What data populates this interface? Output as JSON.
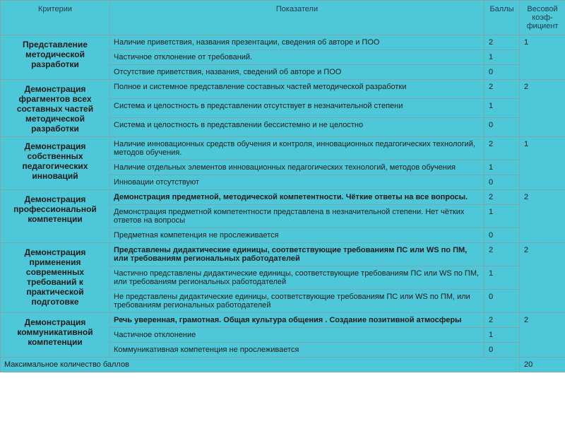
{
  "headers": {
    "criteria": "Критерии",
    "indicators": "Показатели",
    "scores": "Баллы",
    "weight": "Весовой коэф-фициент"
  },
  "rows": [
    {
      "criteria": "Представление методической разработки",
      "weight": "1",
      "items": [
        {
          "text": "Наличие приветствия, названия презентации, сведения об авторе и ПОО",
          "score": "2",
          "bold": false
        },
        {
          "text": "Частичное отклонение от требований.",
          "score": "1",
          "bold": false
        },
        {
          "text": "Отсутствие приветствия, названия, сведений об авторе и ПОО",
          "score": "0",
          "bold": false
        }
      ]
    },
    {
      "criteria": "Демонстрация фрагментов всех составных частей методической разработки",
      "weight": "2",
      "items": [
        {
          "text": "Полное и системное представление составных частей методической разработки",
          "score": "2",
          "bold": false
        },
        {
          "text": "Система и целостность в представлении отсутствует в незначительной степени",
          "score": "1",
          "bold": false
        },
        {
          "text": "Система и целостность в представлении бессистемно и не целостно",
          "score": "0",
          "bold": false
        }
      ]
    },
    {
      "criteria": "Демонстрация собственных педагогических инноваций",
      "weight": "1",
      "items": [
        {
          "text": "Наличие инновационных средств обучения и контроля, инновационных педагогических технологий, методов обучения.",
          "score": "2",
          "bold": false
        },
        {
          "text": "Наличие отдельных элементов инновационных педагогических технологий, методов обучения",
          "score": "1",
          "bold": false
        },
        {
          "text": "Инновации отсутствуют",
          "score": "0",
          "bold": false
        }
      ]
    },
    {
      "criteria": "Демонстрация профессиональной компетенции",
      "weight": "2",
      "items": [
        {
          "text": "Демонстрация предметной, методической  компетентности. Чёткие ответы на все вопросы.",
          "score": "2",
          "bold": true
        },
        {
          "text": "Демонстрация предметной компетентности представлена в незначительной степени. Нет чётких ответов на вопросы",
          "score": "1",
          "bold": false
        },
        {
          "text": "Предметная компетенция не прослеживается",
          "score": "0",
          "bold": false
        }
      ]
    },
    {
      "criteria": "Демонстрация применения современных требований к практической подготовке",
      "weight": "2",
      "items": [
        {
          "text": "Представлены дидактические единицы, соответствующие требованиям ПС или WS по ПМ, или требованиям региональных работодателей",
          "score": "2",
          "bold": true
        },
        {
          "text": "Частично представлены дидактические единицы, соответствующие требованиям ПС или WS по ПМ, или требованиям региональных работодателей",
          "score": "1",
          "bold": false
        },
        {
          "text": "Не представлены дидактические единицы, соответствующие требованиям ПС или WS по ПМ, или требованиям региональных работодателей",
          "score": "0",
          "bold": false
        }
      ]
    },
    {
      "criteria": "Демонстрация коммуникативной компетенции",
      "weight": "2",
      "items": [
        {
          "text": "Речь уверенная, грамотная. Общая культура общения . Создание позитивной атмосферы",
          "score": "2",
          "bold": true
        },
        {
          "text": "Частичное отклонение",
          "score": "1",
          "bold": false
        },
        {
          "text": "Коммуникативная компетенция не прослеживается",
          "score": "0",
          "bold": false
        }
      ]
    }
  ],
  "footer": {
    "label": "Максимальное количество баллов",
    "value": "20"
  }
}
